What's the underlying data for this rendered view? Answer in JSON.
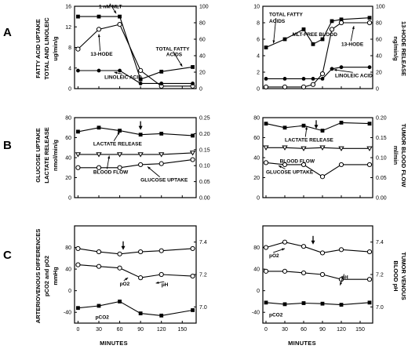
{
  "panel_letters": [
    "A",
    "B",
    "C"
  ],
  "row_a": {
    "left_ylabel_line1": "FATTY ACID UPTAKE",
    "left_ylabel_line2": "TOTAL AND LINOLEIC",
    "left_ylabel_unit": "ug/min/g",
    "right_ylabel": "13-HODE RELEASE",
    "right_ylabel_unit": "ng/min/g"
  },
  "row_b": {
    "left_ylabel_line1": "GLUCOSE UPTAKE",
    "left_ylabel_line2": "LACTATE RELEASE",
    "left_ylabel_unit": "nmol/min/g",
    "right_ylabel": "TUMOR BLOOD FLOW",
    "right_ylabel_unit": "ml/min"
  },
  "row_c": {
    "left_ylabel_line1": "ARTERIOVENOUS DIFFERENCES",
    "left_ylabel_line2": "pCO2 and pO2",
    "left_ylabel_unit": "mmHg",
    "right_ylabel": "TUMOR VENOUS",
    "right_ylabel_line2": "BLOOD pH"
  },
  "x_axis_title": "MINUTES",
  "chart_data": [
    {
      "id": "A-left",
      "type": "line",
      "row": 0,
      "col": 0,
      "xlim": [
        -5,
        170
      ],
      "y_left": {
        "lim": [
          0,
          16
        ],
        "ticks": [
          0,
          4,
          8,
          12,
          16
        ]
      },
      "y_right": {
        "lim": [
          0,
          100
        ],
        "ticks": [
          0,
          20,
          40,
          60,
          80,
          100
        ]
      },
      "series": [
        {
          "name": "TOTAL FATTY ACIDS",
          "axis": "left",
          "marker": "square",
          "x": [
            0,
            30,
            60,
            90,
            120,
            165
          ],
          "y": [
            14,
            14,
            14,
            1.8,
            3.3,
            4.2
          ]
        },
        {
          "name": "13-HODE",
          "axis": "right",
          "marker": "open-circle",
          "x": [
            0,
            30,
            60,
            90,
            120,
            165
          ],
          "y": [
            48,
            72,
            78,
            22,
            3,
            3
          ]
        },
        {
          "name": "LINOLEIC ACID",
          "axis": "left",
          "marker": "filled-circle",
          "x": [
            0,
            30,
            60,
            90,
            120,
            165
          ],
          "y": [
            3.5,
            3.5,
            3.5,
            1,
            1,
            1
          ]
        }
      ],
      "annotations": [
        {
          "text": "1 nM MLT",
          "tx": 30,
          "ty": 15.6,
          "ax": 55,
          "ay": 14.6
        },
        {
          "text": "13-HODE",
          "tx": 18,
          "ty": 6.4,
          "ax": 30,
          "ay": 10.6
        },
        {
          "text": "TOTAL FATTY",
          "tx": 112,
          "ty": 7.4
        },
        {
          "text": "ACIDS",
          "tx": 127,
          "ty": 6.3,
          "ax": 150,
          "ay": 4.3
        },
        {
          "text": "LINOLEIC ACID",
          "tx": 38,
          "ty": 1.9,
          "ax": 52,
          "ay": 3.2
        }
      ]
    },
    {
      "id": "A-right",
      "type": "line",
      "row": 0,
      "col": 1,
      "xlim": [
        -5,
        170
      ],
      "y_left": {
        "lim": [
          0,
          10
        ],
        "ticks": [
          0,
          2,
          4,
          6,
          8,
          10
        ]
      },
      "y_right": {
        "lim": [
          0,
          100
        ],
        "ticks": [
          0,
          20,
          40,
          60,
          80,
          100
        ]
      },
      "series": [
        {
          "name": "TOTAL FATTY ACIDS",
          "axis": "left",
          "marker": "square",
          "x": [
            0,
            30,
            60,
            75,
            90,
            105,
            120,
            165
          ],
          "y": [
            5,
            6,
            7.2,
            5.4,
            6,
            8.2,
            8.4,
            8.6
          ]
        },
        {
          "name": "13-HODE",
          "axis": "right",
          "marker": "open-circle",
          "x": [
            0,
            30,
            60,
            75,
            90,
            105,
            120,
            165
          ],
          "y": [
            2,
            2,
            2,
            5,
            18,
            72,
            80,
            80
          ]
        },
        {
          "name": "LINOLEIC ACID",
          "axis": "left",
          "marker": "filled-circle",
          "x": [
            0,
            30,
            60,
            75,
            90,
            105,
            120,
            165
          ],
          "y": [
            1.2,
            1.2,
            1.2,
            1.2,
            1.2,
            2.4,
            2.6,
            2.6
          ]
        }
      ],
      "annotations": [
        {
          "text": "TOTAL FATTY",
          "tx": 5,
          "ty": 8.8
        },
        {
          "text": "ACIDS",
          "tx": 5,
          "ty": 8.0,
          "ax": 12,
          "ay": 5.5
        },
        {
          "text": "MLT-FREE BLOOD",
          "tx": 42,
          "ty": 6.4
        },
        {
          "text": "13-HODE",
          "tx": 120,
          "ty": 5.2,
          "ax": 140,
          "ay": 7.6
        },
        {
          "text": "LINOLEIC ACID",
          "tx": 110,
          "ty": 1.4,
          "ax": 108,
          "ay": 2.3
        }
      ]
    },
    {
      "id": "B-left",
      "type": "line",
      "row": 1,
      "col": 0,
      "xlim": [
        -5,
        170
      ],
      "y_left": {
        "lim": [
          0,
          80
        ],
        "ticks": [
          0,
          20,
          40,
          60,
          80
        ]
      },
      "y_right": {
        "lim": [
          0,
          0.25
        ],
        "ticks": [
          0,
          0.05,
          0.1,
          0.15,
          0.2,
          0.25
        ],
        "tick_labels": [
          "0.00",
          "0.05",
          "0.10",
          "0.15",
          "0.20",
          "0.25"
        ]
      },
      "series": [
        {
          "name": "LACTATE RELEASE",
          "axis": "left",
          "marker": "square",
          "x": [
            0,
            30,
            60,
            90,
            120,
            165
          ],
          "y": [
            66,
            70,
            67,
            63,
            64,
            62
          ]
        },
        {
          "name": "BLOOD FLOW",
          "axis": "right",
          "marker": "open-triangle",
          "x": [
            0,
            30,
            60,
            90,
            120,
            165
          ],
          "y": [
            0.135,
            0.135,
            0.135,
            0.135,
            0.135,
            0.14
          ]
        },
        {
          "name": "GLUCOSE UPTAKE",
          "axis": "left",
          "marker": "open-circle",
          "x": [
            0,
            30,
            60,
            90,
            120,
            165
          ],
          "y": [
            30,
            30,
            30,
            33,
            34,
            38
          ]
        }
      ],
      "annotations": [
        {
          "text": "",
          "kind": "arrow-down",
          "ax": 90,
          "ay": 67
        },
        {
          "text": "LACTATE RELEASE",
          "tx": 22,
          "ty": 52,
          "ax": 60,
          "ay": 66
        },
        {
          "text": "BLOOD FLOW",
          "tx": 22,
          "ty": 24,
          "ax": 45,
          "ay": 42
        },
        {
          "text": "GLUCOSE UPTAKE",
          "tx": 90,
          "ty": 16,
          "ax": 100,
          "ay": 31
        }
      ]
    },
    {
      "id": "B-right",
      "type": "line",
      "row": 1,
      "col": 1,
      "xlim": [
        -5,
        170
      ],
      "y_left": {
        "lim": [
          0,
          80
        ],
        "ticks": [
          0,
          20,
          40,
          60,
          80
        ]
      },
      "y_right": {
        "lim": [
          0,
          0.2
        ],
        "ticks": [
          0,
          0.05,
          0.1,
          0.15,
          0.2
        ],
        "tick_labels": [
          "0.00",
          "0.05",
          "0.10",
          "0.15",
          "0.20"
        ]
      },
      "series": [
        {
          "name": "LACTATE RELEASE",
          "axis": "left",
          "marker": "square",
          "x": [
            0,
            30,
            60,
            90,
            120,
            165
          ],
          "y": [
            74,
            70,
            72,
            67,
            75,
            74
          ]
        },
        {
          "name": "BLOOD FLOW",
          "axis": "right",
          "marker": "open-triangle",
          "x": [
            0,
            30,
            60,
            90,
            120,
            165
          ],
          "y": [
            0.125,
            0.125,
            0.123,
            0.125,
            0.123,
            0.123
          ]
        },
        {
          "name": "GLUCOSE UPTAKE",
          "axis": "left",
          "marker": "open-circle",
          "x": [
            0,
            30,
            60,
            90,
            120,
            165
          ],
          "y": [
            35,
            33,
            33,
            21,
            33,
            33
          ]
        }
      ],
      "annotations": [
        {
          "text": "",
          "kind": "arrow-down",
          "ax": 80,
          "ay": 68
        },
        {
          "text": "LACTATE RELEASE",
          "tx": 30,
          "ty": 56,
          "ax": 65,
          "ay": 71
        },
        {
          "text": "BLOOD FLOW",
          "tx": 22,
          "ty": 35
        },
        {
          "text": "GLUCOSE UPTAKE",
          "tx": 0,
          "ty": 24,
          "ax": 20,
          "ay": 32
        }
      ]
    },
    {
      "id": "C-left",
      "type": "line",
      "row": 2,
      "col": 0,
      "xlim": [
        -5,
        170
      ],
      "y_left": {
        "lim": [
          -60,
          120
        ],
        "ticks": [
          -40,
          0,
          40,
          80
        ]
      },
      "y_right": {
        "lim": [
          6.9,
          7.5
        ],
        "ticks": [
          7.0,
          7.2,
          7.4
        ],
        "tick_labels": [
          "7.0",
          "7.2",
          "7.4"
        ]
      },
      "series": [
        {
          "name": "pO2",
          "axis": "left",
          "marker": "open-circle",
          "x": [
            0,
            30,
            60,
            90,
            120,
            165
          ],
          "y": [
            78,
            72,
            68,
            72,
            74,
            78
          ]
        },
        {
          "name": "pH",
          "axis": "right",
          "marker": "open-circle",
          "x": [
            0,
            30,
            60,
            90,
            120,
            165
          ],
          "y": [
            7.26,
            7.25,
            7.24,
            7.18,
            7.2,
            7.19
          ]
        },
        {
          "name": "pCO2",
          "axis": "left",
          "marker": "filled-square",
          "x": [
            0,
            30,
            60,
            90,
            120,
            165
          ],
          "y": [
            -32,
            -28,
            -20,
            -42,
            -46,
            -36
          ]
        }
      ],
      "annotations": [
        {
          "text": "",
          "kind": "arrow-down",
          "ax": 65,
          "ay": 74
        },
        {
          "text": "pO2",
          "tx": 60,
          "ty": 10,
          "ax": 72,
          "ay": 24
        },
        {
          "text": "pH",
          "tx": 120,
          "ty": 8,
          "ax": 112,
          "ay": 14
        },
        {
          "text": "pCO2",
          "tx": 25,
          "ty": -52
        }
      ]
    },
    {
      "id": "C-right",
      "type": "line",
      "row": 2,
      "col": 1,
      "xlim": [
        -5,
        170
      ],
      "y_left": {
        "lim": [
          -60,
          120
        ],
        "ticks": [
          -40,
          0,
          40,
          80
        ]
      },
      "y_right": {
        "lim": [
          6.9,
          7.5
        ],
        "ticks": [
          7.0,
          7.2,
          7.4
        ],
        "tick_labels": [
          "7.0",
          "7.2",
          "7.4"
        ]
      },
      "series": [
        {
          "name": "pO2",
          "axis": "left",
          "marker": "open-circle",
          "x": [
            0,
            30,
            60,
            90,
            120,
            165
          ],
          "y": [
            80,
            90,
            82,
            70,
            76,
            72
          ]
        },
        {
          "name": "pH",
          "axis": "right",
          "marker": "open-circle",
          "x": [
            0,
            30,
            60,
            90,
            120,
            165
          ],
          "y": [
            7.22,
            7.22,
            7.21,
            7.2,
            7.17,
            7.17
          ]
        },
        {
          "name": "pCO2",
          "axis": "left",
          "marker": "filled-square",
          "x": [
            0,
            30,
            60,
            90,
            120,
            165
          ],
          "y": [
            -22,
            -25,
            -23,
            -24,
            -26,
            -22
          ]
        }
      ],
      "annotations": [
        {
          "text": "",
          "kind": "arrow-down",
          "ax": 75,
          "ay": 84
        },
        {
          "text": "pO2",
          "tx": 5,
          "ty": 62,
          "ax": 30,
          "ay": 78
        },
        {
          "text": "pH",
          "tx": 120,
          "ty": 22,
          "ax": 118,
          "ay": 10
        },
        {
          "text": "pCO2",
          "tx": 5,
          "ty": -48
        }
      ]
    }
  ]
}
